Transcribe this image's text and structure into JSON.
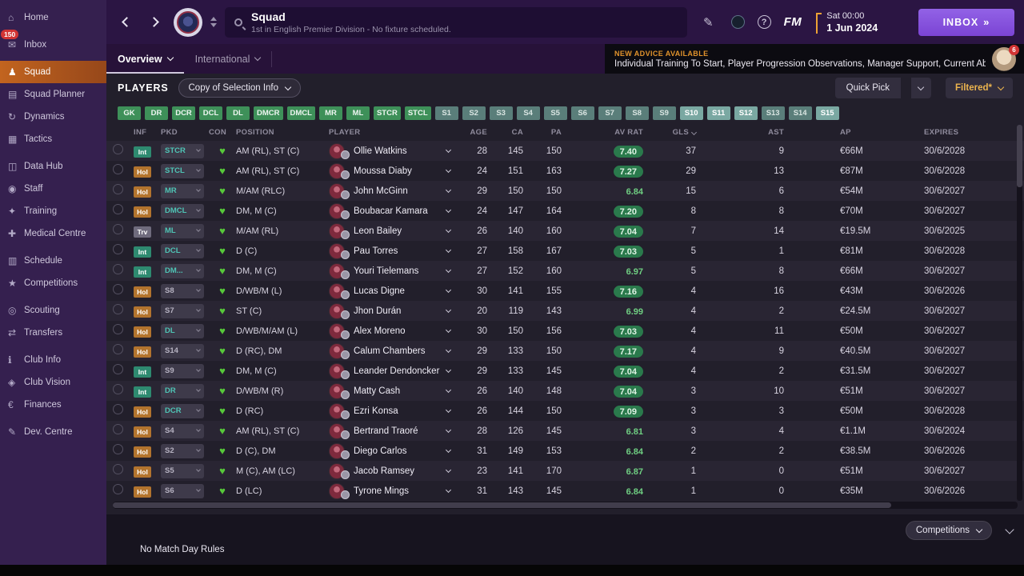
{
  "sidebar": {
    "items": [
      {
        "label": "Home",
        "icon": "home",
        "glyph": "⌂"
      },
      {
        "label": "Inbox",
        "icon": "inbox",
        "glyph": "✉",
        "badge": "150",
        "group_start": true
      },
      {
        "label": "Squad",
        "icon": "squad-shirt",
        "glyph": "♟",
        "active": true,
        "group_start": true
      },
      {
        "label": "Squad Planner",
        "icon": "squad-planner",
        "glyph": "▤"
      },
      {
        "label": "Dynamics",
        "icon": "dynamics",
        "glyph": "↻"
      },
      {
        "label": "Tactics",
        "icon": "tactics",
        "glyph": "▦"
      },
      {
        "label": "Data Hub",
        "icon": "data-hub",
        "glyph": "◫",
        "group_start": true
      },
      {
        "label": "Staff",
        "icon": "staff",
        "glyph": "◉"
      },
      {
        "label": "Training",
        "icon": "training",
        "glyph": "✦"
      },
      {
        "label": "Medical Centre",
        "icon": "medical-centre",
        "glyph": "✚"
      },
      {
        "label": "Schedule",
        "icon": "schedule",
        "glyph": "▥",
        "group_start": true
      },
      {
        "label": "Competitions",
        "icon": "competitions-trophy",
        "glyph": "★"
      },
      {
        "label": "Scouting",
        "icon": "scouting-scope",
        "glyph": "◎",
        "group_start": true
      },
      {
        "label": "Transfers",
        "icon": "transfers-arrows",
        "glyph": "⇄"
      },
      {
        "label": "Club Info",
        "icon": "club-info",
        "glyph": "ℹ",
        "group_start": true
      },
      {
        "label": "Club Vision",
        "icon": "club-vision",
        "glyph": "◈"
      },
      {
        "label": "Finances",
        "icon": "finances-euro",
        "glyph": "€"
      },
      {
        "label": "Dev. Centre",
        "icon": "dev-centre",
        "glyph": "✎",
        "group_start": true
      }
    ]
  },
  "topbar": {
    "title": "Squad",
    "subtitle": "1st in English Premier Division - No fixture scheduled.",
    "date_time": "Sat 00:00",
    "date": "1 Jun 2024",
    "inbox_label": "INBOX",
    "fm_logo": "FM",
    "help": "?"
  },
  "tabs": {
    "overview": "Overview",
    "international": "International"
  },
  "advice": {
    "heading": "NEW ADVICE AVAILABLE",
    "text": "Individual Training To Start, Player Progression Observations, Manager Support, Current Ability Changes",
    "badge": "6"
  },
  "players_bar": {
    "title": "PLAYERS",
    "selection_dropdown": "Copy of Selection Info",
    "quick_pick": "Quick Pick",
    "filtered": "Filtered*"
  },
  "filters": {
    "positions": [
      "GK",
      "DR",
      "DCR",
      "DCL",
      "DL",
      "DMCR",
      "DMCL",
      "MR",
      "ML",
      "STCR",
      "STCL"
    ],
    "slots": [
      {
        "label": "S1"
      },
      {
        "label": "S2"
      },
      {
        "label": "S3"
      },
      {
        "label": "S4"
      },
      {
        "label": "S5"
      },
      {
        "label": "S6"
      },
      {
        "label": "S7"
      },
      {
        "label": "S8"
      },
      {
        "label": "S9"
      },
      {
        "label": "S10",
        "bright": true
      },
      {
        "label": "S11",
        "bright": true
      },
      {
        "label": "S12",
        "bright": true
      },
      {
        "label": "S13"
      },
      {
        "label": "S14"
      },
      {
        "label": "S15",
        "bright": true
      }
    ]
  },
  "table": {
    "columns": [
      {
        "label": "INF"
      },
      {
        "label": "PKD"
      },
      {
        "label": "CON"
      },
      {
        "label": "POSITION"
      },
      {
        "label": "PLAYER"
      },
      {
        "label": "AGE"
      },
      {
        "label": "CA"
      },
      {
        "label": "PA"
      },
      {
        "label": "AV RAT"
      },
      {
        "label": "GLS",
        "sorted": true
      },
      {
        "label": "AST"
      },
      {
        "label": "AP"
      },
      {
        "label": "EXPIRES"
      }
    ],
    "rows": [
      {
        "inf": "Int",
        "pkd": "STCR",
        "pkd_slot": false,
        "position": "AM (RL), ST (C)",
        "name": "Ollie Watkins",
        "age": "28",
        "ca": "145",
        "pa": "150",
        "av_rat": "7.40",
        "rat_pill": true,
        "gls": "37",
        "ast": "9",
        "ap": "€66M",
        "expires": "30/6/2028"
      },
      {
        "inf": "Hol",
        "pkd": "STCL",
        "pkd_slot": false,
        "position": "AM (RL), ST (C)",
        "name": "Moussa Diaby",
        "age": "24",
        "ca": "151",
        "pa": "163",
        "av_rat": "7.27",
        "rat_pill": true,
        "gls": "29",
        "ast": "13",
        "ap": "€87M",
        "expires": "30/6/2028"
      },
      {
        "inf": "Hol",
        "pkd": "MR",
        "pkd_slot": false,
        "position": "M/AM (RLC)",
        "name": "John McGinn",
        "age": "29",
        "ca": "150",
        "pa": "150",
        "av_rat": "6.84",
        "rat_pill": false,
        "gls": "15",
        "ast": "6",
        "ap": "€54M",
        "expires": "30/6/2027"
      },
      {
        "inf": "Hol",
        "pkd": "DMCL",
        "pkd_slot": false,
        "position": "DM, M (C)",
        "name": "Boubacar Kamara",
        "age": "24",
        "ca": "147",
        "pa": "164",
        "av_rat": "7.20",
        "rat_pill": true,
        "gls": "8",
        "ast": "8",
        "ap": "€70M",
        "expires": "30/6/2027"
      },
      {
        "inf": "Trv",
        "pkd": "ML",
        "pkd_slot": false,
        "position": "M/AM (RL)",
        "name": "Leon Bailey",
        "age": "26",
        "ca": "140",
        "pa": "160",
        "av_rat": "7.04",
        "rat_pill": true,
        "gls": "7",
        "ast": "14",
        "ap": "€19.5M",
        "expires": "30/6/2025"
      },
      {
        "inf": "Int",
        "pkd": "DCL",
        "pkd_slot": false,
        "position": "D (C)",
        "name": "Pau Torres",
        "age": "27",
        "ca": "158",
        "pa": "167",
        "av_rat": "7.03",
        "rat_pill": true,
        "gls": "5",
        "ast": "1",
        "ap": "€81M",
        "expires": "30/6/2028"
      },
      {
        "inf": "Int",
        "pkd": "DM...",
        "pkd_slot": false,
        "position": "DM, M (C)",
        "name": "Youri Tielemans",
        "age": "27",
        "ca": "152",
        "pa": "160",
        "av_rat": "6.97",
        "rat_pill": false,
        "gls": "5",
        "ast": "8",
        "ap": "€66M",
        "expires": "30/6/2027"
      },
      {
        "inf": "Hol",
        "pkd": "S8",
        "pkd_slot": true,
        "position": "D/WB/M (L)",
        "name": "Lucas Digne",
        "age": "30",
        "ca": "141",
        "pa": "155",
        "av_rat": "7.16",
        "rat_pill": true,
        "gls": "4",
        "ast": "16",
        "ap": "€43M",
        "expires": "30/6/2026"
      },
      {
        "inf": "Hol",
        "pkd": "S7",
        "pkd_slot": true,
        "position": "ST (C)",
        "name": "Jhon Durán",
        "age": "20",
        "ca": "119",
        "pa": "143",
        "av_rat": "6.99",
        "rat_pill": false,
        "gls": "4",
        "ast": "2",
        "ap": "€24.5M",
        "expires": "30/6/2027"
      },
      {
        "inf": "Hol",
        "pkd": "DL",
        "pkd_slot": false,
        "position": "D/WB/M/AM (L)",
        "name": "Álex Moreno",
        "age": "30",
        "ca": "150",
        "pa": "156",
        "av_rat": "7.03",
        "rat_pill": true,
        "gls": "4",
        "ast": "11",
        "ap": "€50M",
        "expires": "30/6/2027"
      },
      {
        "inf": "Hol",
        "pkd": "S14",
        "pkd_slot": true,
        "position": "D (RC), DM",
        "name": "Calum Chambers",
        "age": "29",
        "ca": "133",
        "pa": "150",
        "av_rat": "7.17",
        "rat_pill": true,
        "gls": "4",
        "ast": "9",
        "ap": "€40.5M",
        "expires": "30/6/2027"
      },
      {
        "inf": "Int",
        "pkd": "S9",
        "pkd_slot": true,
        "position": "DM, M (C)",
        "name": "Leander Dendoncker",
        "age": "29",
        "ca": "133",
        "pa": "145",
        "av_rat": "7.04",
        "rat_pill": true,
        "gls": "4",
        "ast": "2",
        "ap": "€31.5M",
        "expires": "30/6/2027"
      },
      {
        "inf": "Int",
        "pkd": "DR",
        "pkd_slot": false,
        "position": "D/WB/M (R)",
        "name": "Matty Cash",
        "age": "26",
        "ca": "140",
        "pa": "148",
        "av_rat": "7.04",
        "rat_pill": true,
        "gls": "3",
        "ast": "10",
        "ap": "€51M",
        "expires": "30/6/2027"
      },
      {
        "inf": "Hol",
        "pkd": "DCR",
        "pkd_slot": false,
        "position": "D (RC)",
        "name": "Ezri Konsa",
        "age": "26",
        "ca": "144",
        "pa": "150",
        "av_rat": "7.09",
        "rat_pill": true,
        "gls": "3",
        "ast": "3",
        "ap": "€50M",
        "expires": "30/6/2028"
      },
      {
        "inf": "Hol",
        "pkd": "S4",
        "pkd_slot": true,
        "position": "AM (RL), ST (C)",
        "name": "Bertrand Traoré",
        "age": "28",
        "ca": "126",
        "pa": "145",
        "av_rat": "6.81",
        "rat_pill": false,
        "gls": "3",
        "ast": "4",
        "ap": "€1.1M",
        "expires": "30/6/2024"
      },
      {
        "inf": "Hol",
        "pkd": "S2",
        "pkd_slot": true,
        "position": "D (C), DM",
        "name": "Diego Carlos",
        "age": "31",
        "ca": "149",
        "pa": "153",
        "av_rat": "6.84",
        "rat_pill": false,
        "gls": "2",
        "ast": "2",
        "ap": "€38.5M",
        "expires": "30/6/2026"
      },
      {
        "inf": "Hol",
        "pkd": "S5",
        "pkd_slot": true,
        "position": "M (C), AM (LC)",
        "name": "Jacob Ramsey",
        "age": "23",
        "ca": "141",
        "pa": "170",
        "av_rat": "6.87",
        "rat_pill": false,
        "gls": "1",
        "ast": "0",
        "ap": "€51M",
        "expires": "30/6/2027"
      },
      {
        "inf": "Hol",
        "pkd": "S6",
        "pkd_slot": true,
        "position": "D (LC)",
        "name": "Tyrone Mings",
        "age": "31",
        "ca": "143",
        "pa": "145",
        "av_rat": "6.84",
        "rat_pill": false,
        "gls": "1",
        "ast": "0",
        "ap": "€35M",
        "expires": "30/6/2026"
      }
    ]
  },
  "footer": {
    "competitions": "Competitions",
    "no_match_text": "No Match Day Rules"
  }
}
